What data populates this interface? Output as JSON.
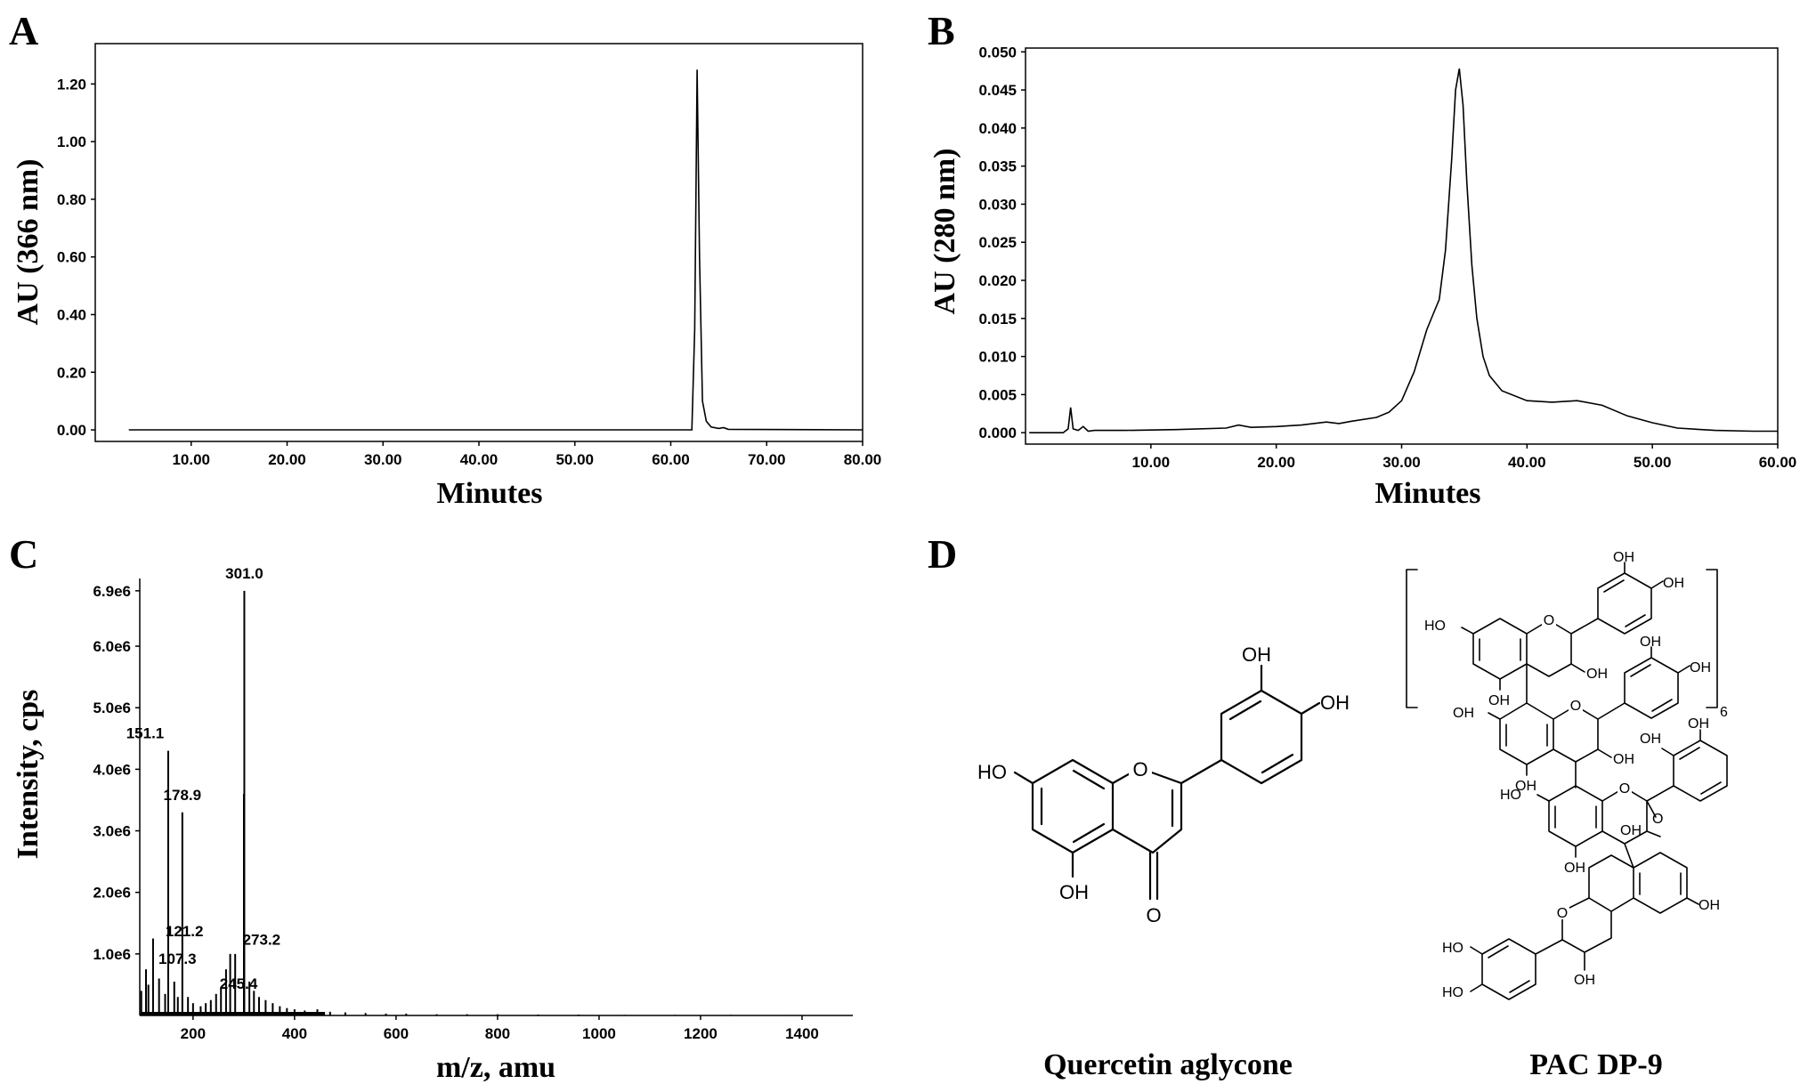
{
  "chart_data": [
    {
      "panel": "A",
      "type": "line",
      "xlabel": "Minutes",
      "ylabel": "AU (366 nm)",
      "xlim": [
        0,
        80
      ],
      "ylim": [
        -0.04,
        1.34
      ],
      "x_ticks": [
        10,
        20,
        30,
        40,
        50,
        60,
        70,
        80
      ],
      "x_tick_labels": [
        "10.00",
        "20.00",
        "30.00",
        "40.00",
        "50.00",
        "60.00",
        "70.00",
        "80.00"
      ],
      "y_ticks": [
        0,
        0.2,
        0.4,
        0.6,
        0.8,
        1.0,
        1.2
      ],
      "y_tick_labels": [
        "0.00",
        "0.20",
        "0.40",
        "0.60",
        "0.80",
        "1.00",
        "1.20"
      ],
      "series": [
        {
          "x": [
            3.5,
            40,
            62.2,
            62.5,
            62.75,
            63.0,
            63.3,
            63.7,
            64.2,
            65.0,
            65.5,
            66.0,
            80
          ],
          "y": [
            0.0,
            0.0,
            0.0,
            0.35,
            1.25,
            0.6,
            0.1,
            0.03,
            0.01,
            0.005,
            0.008,
            0.002,
            0.0
          ]
        }
      ]
    },
    {
      "panel": "B",
      "type": "line",
      "xlabel": "Minutes",
      "ylabel": "AU (280 nm)",
      "xlim": [
        0,
        60
      ],
      "ylim": [
        -0.0015,
        0.0505
      ],
      "x_ticks": [
        10,
        20,
        30,
        40,
        50,
        60
      ],
      "x_tick_labels": [
        "10.00",
        "20.00",
        "30.00",
        "40.00",
        "50.00",
        "60.00"
      ],
      "y_ticks": [
        0,
        0.005,
        0.01,
        0.015,
        0.02,
        0.025,
        0.03,
        0.035,
        0.04,
        0.045,
        0.05
      ],
      "y_tick_labels": [
        "0.000",
        "0.005",
        "0.010",
        "0.015",
        "0.020",
        "0.025",
        "0.030",
        "0.035",
        "0.040",
        "0.045",
        "0.050"
      ],
      "series": [
        {
          "x": [
            0.3,
            3.0,
            3.4,
            3.6,
            3.8,
            4.2,
            4.6,
            5.0,
            5.5,
            8,
            12,
            16,
            17,
            18,
            20,
            22,
            24,
            25,
            26,
            28,
            29,
            30,
            31,
            32,
            32.5,
            33.0,
            33.5,
            34.0,
            34.3,
            34.6,
            34.9,
            35.2,
            35.6,
            36.0,
            36.5,
            37,
            38,
            40,
            42,
            44,
            46,
            48,
            50,
            52,
            55,
            58,
            60
          ],
          "y": [
            0.0,
            0.0,
            0.0005,
            0.0033,
            0.0005,
            0.0003,
            0.0008,
            0.0002,
            0.0003,
            0.0003,
            0.0004,
            0.0006,
            0.001,
            0.0007,
            0.0008,
            0.001,
            0.0014,
            0.0012,
            0.0015,
            0.002,
            0.0027,
            0.0042,
            0.008,
            0.0135,
            0.0155,
            0.0175,
            0.024,
            0.036,
            0.045,
            0.0478,
            0.043,
            0.033,
            0.022,
            0.015,
            0.01,
            0.0075,
            0.0055,
            0.0042,
            0.004,
            0.0042,
            0.0036,
            0.0022,
            0.0013,
            0.0006,
            0.0003,
            0.0002,
            0.0002
          ]
        }
      ]
    },
    {
      "panel": "C",
      "type": "bar",
      "xlabel": "m/z, amu",
      "ylabel": "Intensity, cps",
      "xlim": [
        95,
        1500
      ],
      "ylim": [
        0,
        7.1
      ],
      "x_ticks": [
        200,
        400,
        600,
        800,
        1000,
        1200,
        1400
      ],
      "x_tick_labels": [
        "200",
        "400",
        "600",
        "800",
        "1000",
        "1200",
        "1400"
      ],
      "y_ticks": [
        1,
        2,
        3,
        4,
        5,
        6,
        6.9
      ],
      "y_tick_labels": [
        "1.0e6",
        "2.0e6",
        "3.0e6",
        "4.0e6",
        "5.0e6",
        "6.0e6",
        "6.9e6"
      ],
      "peak_labels": [
        {
          "text": "301.0",
          "x": 301.0,
          "y": 6.9
        },
        {
          "text": "151.1",
          "x": 151.1,
          "y": 4.3
        },
        {
          "text": "178.9",
          "x": 178.9,
          "y": 3.3
        },
        {
          "text": "121.2",
          "x": 121.2,
          "y": 1.2
        },
        {
          "text": "107.3",
          "x": 107.3,
          "y": 0.75
        },
        {
          "text": "273.2",
          "x": 273.2,
          "y": 0.95
        },
        {
          "text": "245.4",
          "x": 245.4,
          "y": 0.35
        }
      ],
      "peaks": [
        {
          "x": 301.0,
          "y": 6.9
        },
        {
          "x": 151.1,
          "y": 4.3
        },
        {
          "x": 178.9,
          "y": 3.3
        },
        {
          "x": 121.2,
          "y": 1.25
        },
        {
          "x": 107.3,
          "y": 0.75
        },
        {
          "x": 273.2,
          "y": 1.0
        },
        {
          "x": 245.4,
          "y": 0.35
        },
        {
          "x": 300.2,
          "y": 3.6
        },
        {
          "x": 283.0,
          "y": 1.0
        },
        {
          "x": 265.0,
          "y": 0.75
        },
        {
          "x": 255.0,
          "y": 0.45
        },
        {
          "x": 235.0,
          "y": 0.25
        },
        {
          "x": 225.0,
          "y": 0.2
        },
        {
          "x": 215.0,
          "y": 0.15
        },
        {
          "x": 311.0,
          "y": 0.55
        },
        {
          "x": 320.0,
          "y": 0.4
        },
        {
          "x": 330.0,
          "y": 0.3
        },
        {
          "x": 343.0,
          "y": 0.25
        },
        {
          "x": 357.0,
          "y": 0.2
        },
        {
          "x": 371.0,
          "y": 0.15
        },
        {
          "x": 385.0,
          "y": 0.12
        },
        {
          "x": 400.0,
          "y": 0.1
        },
        {
          "x": 420.0,
          "y": 0.08
        },
        {
          "x": 445.0,
          "y": 0.1
        },
        {
          "x": 470.0,
          "y": 0.06
        },
        {
          "x": 500.0,
          "y": 0.05
        },
        {
          "x": 540.0,
          "y": 0.04
        },
        {
          "x": 580.0,
          "y": 0.03
        },
        {
          "x": 620.0,
          "y": 0.03
        },
        {
          "x": 680.0,
          "y": 0.02
        },
        {
          "x": 740.0,
          "y": 0.02
        },
        {
          "x": 800.0,
          "y": 0.02
        },
        {
          "x": 880.0,
          "y": 0.015
        },
        {
          "x": 960.0,
          "y": 0.015
        },
        {
          "x": 1050.0,
          "y": 0.01
        },
        {
          "x": 1150.0,
          "y": 0.01
        },
        {
          "x": 1260.0,
          "y": 0.01
        },
        {
          "x": 1380.0,
          "y": 0.008
        },
        {
          "x": 112.0,
          "y": 0.5
        },
        {
          "x": 133.0,
          "y": 0.6
        },
        {
          "x": 145.0,
          "y": 0.35
        },
        {
          "x": 163.0,
          "y": 0.55
        },
        {
          "x": 170.0,
          "y": 0.3
        },
        {
          "x": 190.0,
          "y": 0.3
        },
        {
          "x": 200.0,
          "y": 0.2
        },
        {
          "x": 98.0,
          "y": 0.4
        }
      ]
    }
  ],
  "panels": {
    "a_letter": "A",
    "b_letter": "B",
    "c_letter": "C",
    "d_letter": "D"
  },
  "structures": {
    "quercetin_name": "Quercetin aglycone",
    "pac_name": "PAC DP-9",
    "oh": "OH",
    "ho": "HO",
    "o": "O",
    "repeat_subscript": "6"
  }
}
